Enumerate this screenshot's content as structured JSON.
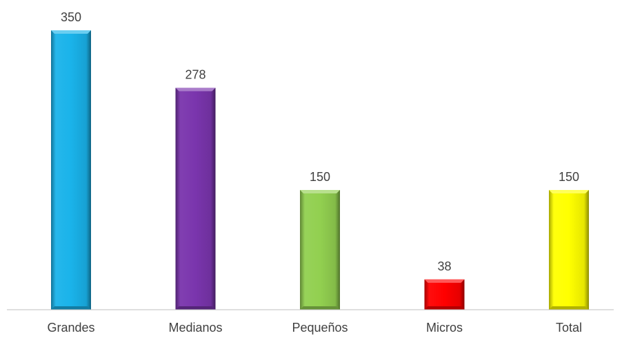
{
  "chart_data": {
    "type": "bar",
    "title": "",
    "xlabel": "",
    "ylabel": "",
    "categories": [
      "Grandes",
      "Medianos",
      "Pequeños",
      "Micros",
      "Total"
    ],
    "values": [
      350,
      278,
      150,
      38,
      150
    ],
    "data_labels": [
      "350",
      "278",
      "150",
      "38",
      "150"
    ],
    "ylim": [
      0,
      360
    ],
    "grid": false,
    "legend": "none",
    "colors": [
      "#1ab3ea",
      "#7a35ad",
      "#92d050",
      "#ff0000",
      "#ffff00"
    ]
  }
}
